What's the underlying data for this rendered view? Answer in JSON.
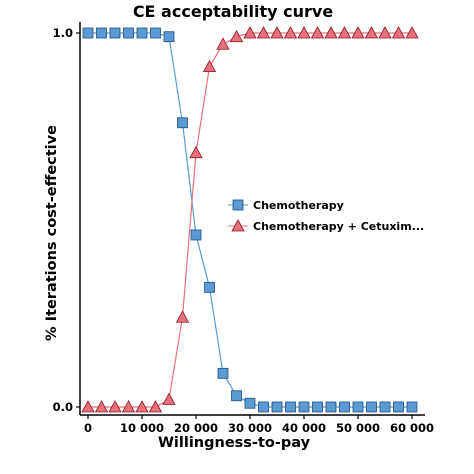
{
  "chart_data": {
    "type": "line",
    "title": "CE acceptability curve",
    "xlabel": "Willingness-to-pay",
    "ylabel": "% Iterations cost-effective",
    "xlim": [
      0,
      60000
    ],
    "ylim": [
      0,
      1
    ],
    "x_ticks": [
      0,
      10000,
      20000,
      30000,
      40000,
      50000,
      60000
    ],
    "x_tick_labels": [
      "0",
      "10 000",
      "20 000",
      "30 000",
      "40 000",
      "50 000",
      "60 000"
    ],
    "y_ticks": [
      0,
      1
    ],
    "y_tick_labels": [
      "0.0",
      "1.0"
    ],
    "grid": false,
    "legend_position": "center-right",
    "x": [
      0,
      2500,
      5000,
      7500,
      10000,
      12500,
      15000,
      17500,
      20000,
      22500,
      25000,
      27500,
      30000,
      32500,
      35000,
      37500,
      40000,
      42500,
      45000,
      47500,
      50000,
      52500,
      55000,
      57500,
      60000
    ],
    "series": [
      {
        "name": "Chemotherapy",
        "marker": "square",
        "color": "#5b9bd5",
        "values": [
          1.0,
          1.0,
          1.0,
          1.0,
          1.0,
          1.0,
          0.99,
          0.76,
          0.46,
          0.32,
          0.09,
          0.03,
          0.01,
          0.0,
          0.0,
          0.0,
          0.0,
          0.0,
          0.0,
          0.0,
          0.0,
          0.0,
          0.0,
          0.0,
          0.0
        ]
      },
      {
        "name": "Chemotherapy + Cetuxim...",
        "marker": "triangle",
        "color": "#e8707a",
        "values": [
          0.0,
          0.0,
          0.0,
          0.0,
          0.0,
          0.0,
          0.02,
          0.24,
          0.68,
          0.91,
          0.97,
          0.99,
          1.0,
          1.0,
          1.0,
          1.0,
          1.0,
          1.0,
          1.0,
          1.0,
          1.0,
          1.0,
          1.0,
          1.0,
          1.0
        ]
      }
    ]
  }
}
